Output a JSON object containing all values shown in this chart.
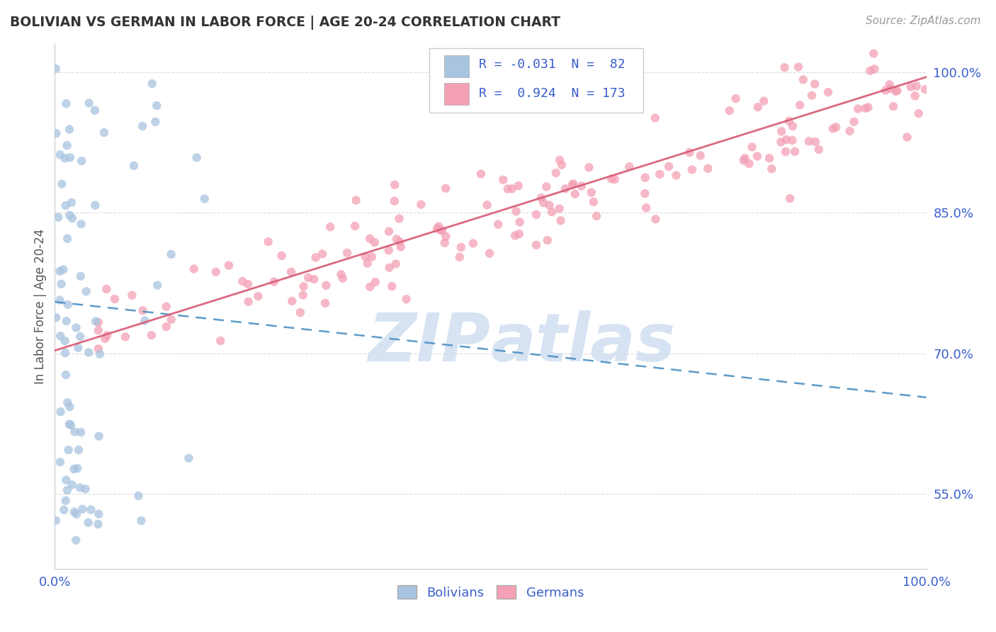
{
  "title": "BOLIVIAN VS GERMAN IN LABOR FORCE | AGE 20-24 CORRELATION CHART",
  "source_text": "Source: ZipAtlas.com",
  "ylabel": "In Labor Force | Age 20-24",
  "bolivian_R": -0.031,
  "bolivian_N": 82,
  "german_R": 0.924,
  "german_N": 173,
  "blue_color": "#a8c4e0",
  "blue_line_color": "#4a90c4",
  "pink_color": "#f4a0b5",
  "pink_line_color": "#d9607a",
  "text_color": "#3a5fcd",
  "title_color": "#333333",
  "watermark_color": "#d0dff0",
  "background_color": "#ffffff",
  "grid_color": "#cccccc",
  "x_min": 0.0,
  "x_max": 1.0,
  "y_min": 0.47,
  "y_max": 1.03,
  "yticks": [
    0.55,
    0.7,
    0.85,
    1.0
  ],
  "xticks": [
    0.0,
    1.0
  ],
  "bol_line_x0": 0.0,
  "bol_line_x1": 1.0,
  "bol_line_y0": 0.755,
  "bol_line_y1": 0.653,
  "ger_line_x0": 0.0,
  "ger_line_x1": 1.0,
  "ger_line_y0": 0.703,
  "ger_line_y1": 0.995
}
